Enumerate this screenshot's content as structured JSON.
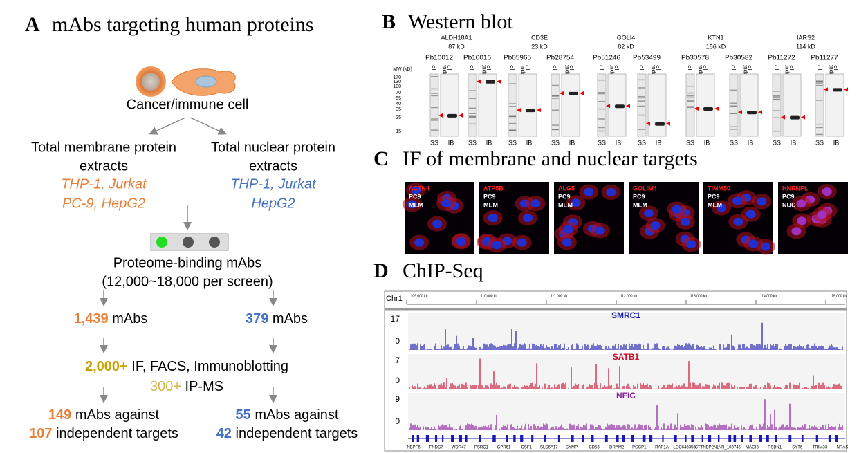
{
  "panel_a": {
    "label": "A",
    "title": "mAbs targeting human proteins",
    "cell_label": "Cancer/immune cell",
    "left": {
      "extract": [
        "Total membrane protein",
        "extracts"
      ],
      "cell_lines": [
        "THP-1, Jurkat",
        "PC-9, HepG2"
      ]
    },
    "right": {
      "extract": [
        "Total nuclear protein",
        "extracts"
      ],
      "cell_lines": [
        "THP-1, Jurkat",
        "HepG2"
      ]
    },
    "proteome": [
      "Proteome-binding mAbs",
      "(12,000~18,000 per screen)"
    ],
    "counts": [
      {
        "number": "1,439",
        "text": "mAbs"
      },
      {
        "number": "379",
        "text": "mAbs"
      }
    ],
    "validation": [
      {
        "number": "2,000+",
        "text": "IF, FACS, Immunoblotting"
      },
      {
        "number": "300+",
        "text": "IP-MS"
      }
    ],
    "results": [
      [
        {
          "number": "149",
          "text": "mAbs against"
        },
        {
          "number": "107",
          "text": "independent targets"
        }
      ],
      [
        {
          "number": "55",
          "text": "mAbs against"
        },
        {
          "number": "42",
          "text": "independent targets"
        }
      ]
    ]
  },
  "panel_b": {
    "label": "B",
    "title": "Western blot",
    "mw_label": "MW (kD)",
    "mw_markers": [
      170,
      130,
      100,
      70,
      55,
      40,
      35,
      25,
      15
    ],
    "lane_labels": {
      "ip": "IP",
      "input": "Input",
      "ss": "SS",
      "ib": "IB"
    },
    "proteins": [
      {
        "name": "ALDH18A1",
        "mw": "87 kD",
        "clones": [
          "Pb10012",
          "Pb10016"
        ]
      },
      {
        "name": "CD3E",
        "mw": "23 kD",
        "clones": [
          "Pb05965",
          "Pb28754"
        ]
      },
      {
        "name": "GOLI4",
        "mw": "82 kD",
        "clones": [
          "Pb51246",
          "Pb53499"
        ]
      },
      {
        "name": "KTN1",
        "mw": "156 kD",
        "clones": [
          "Pb30578",
          "Pb30582"
        ]
      },
      {
        "name": "IARS2",
        "mw": "114 kD",
        "clones": [
          "Pb11272",
          "Pb11277"
        ]
      }
    ]
  },
  "panel_c": {
    "label": "C",
    "title": "IF of membrane and nuclear targets",
    "images": [
      {
        "target": "ACTN4",
        "cell": "PC9",
        "location": "MEM"
      },
      {
        "target": "ATP5B",
        "cell": "PC9",
        "location": "MEM"
      },
      {
        "target": "ALG5",
        "cell": "PC9",
        "location": "MEM"
      },
      {
        "target": "GOLIM4",
        "cell": "PC9",
        "location": "MEM"
      },
      {
        "target": "TIMM50",
        "cell": "PC9",
        "location": "MEM"
      },
      {
        "target": "HNRNPL",
        "cell": "PC9",
        "location": "NUC"
      }
    ]
  },
  "panel_d": {
    "label": "D",
    "title": "ChIP-Seq",
    "chromosome": "Chr1",
    "positions": [
      "109,000 kb",
      "110,000 kb",
      "111,000 kb",
      "112,000 kb",
      "113,000 kb",
      "114,000 kb",
      "115,000 kb"
    ],
    "tracks": [
      {
        "name": "SMRC1",
        "max": "17",
        "min": "0"
      },
      {
        "name": "SATB1",
        "max": "7",
        "min": "0"
      },
      {
        "name": "NFIC",
        "max": "9",
        "min": "0"
      }
    ],
    "genes": [
      "NBPF6",
      "FNDC7",
      "WDR47",
      "PSRC1",
      "GPR61",
      "CSF1",
      "SLC6A17",
      "CYMP",
      "CD53",
      "DRAM2",
      "PGCP1",
      "RAP1A",
      "LOC643355",
      "CTTNBP2NL",
      "NR_103746",
      "MAGI3",
      "RSBN1",
      "SYT6",
      "TRIM33",
      "NRAS"
    ]
  }
}
